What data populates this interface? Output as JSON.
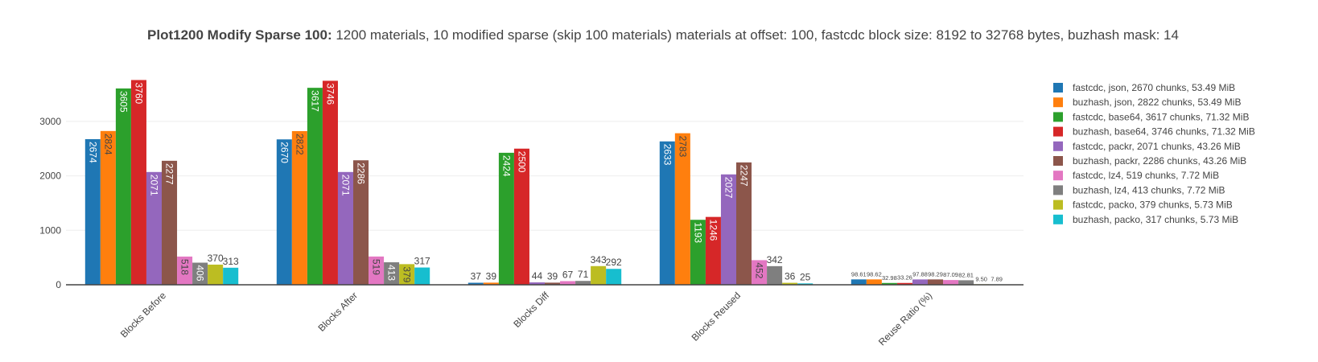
{
  "title": {
    "bold": "Plot1200 Modify Sparse 100:",
    "rest": " 1200 materials, 10 modified sparse (skip 100 materials) materials at offset: 100, fastcdc block size: 8192 to 32768 bytes, buzhash mask: 14"
  },
  "chart_data": {
    "type": "bar",
    "categories": [
      "Blocks Before",
      "Blocks After",
      "Blocks Diff",
      "Blocks Reused",
      "Reuse Ratio (%)"
    ],
    "y_ticks": [
      0,
      1000,
      2000,
      3000
    ],
    "ylim": [
      0,
      3900
    ],
    "grid": true,
    "legend_position": "right",
    "series": [
      {
        "name": "fastcdc, json, 2670 chunks, 53.49 MiB",
        "color": "#1f77b4",
        "values": [
          2674,
          2670,
          37,
          2633,
          98.61
        ],
        "labels": [
          "2674",
          "2670",
          "37",
          "2633",
          "98.61"
        ]
      },
      {
        "name": "buzhash, json, 2822 chunks, 53.49 MiB",
        "color": "#ff7f0e",
        "values": [
          2824,
          2822,
          39,
          2783,
          98.62
        ],
        "labels": [
          "2824",
          "2822",
          "39",
          "2783",
          "98.62"
        ]
      },
      {
        "name": "fastcdc, base64, 3617 chunks, 71.32 MiB",
        "color": "#2ca02c",
        "values": [
          3605,
          3617,
          2424,
          1193,
          32.98
        ],
        "labels": [
          "3605",
          "3617",
          "2424",
          "1193",
          "32.98"
        ]
      },
      {
        "name": "buzhash, base64, 3746 chunks, 71.32 MiB",
        "color": "#d62728",
        "values": [
          3760,
          3746,
          2500,
          1246,
          33.26
        ],
        "labels": [
          "3760",
          "3746",
          "2500",
          "1246",
          "33.26"
        ]
      },
      {
        "name": "fastcdc, packr, 2071 chunks, 43.26 MiB",
        "color": "#9467bd",
        "values": [
          2071,
          2071,
          44,
          2027,
          97.88
        ],
        "labels": [
          "2071",
          "2071",
          "44",
          "2027",
          "97.88"
        ]
      },
      {
        "name": "buzhash, packr, 2286 chunks, 43.26 MiB",
        "color": "#8c564b",
        "values": [
          2277,
          2286,
          39,
          2247,
          98.29
        ],
        "labels": [
          "2277",
          "2286",
          "39",
          "2247",
          "98.29"
        ]
      },
      {
        "name": "fastcdc, lz4, 519 chunks, 7.72 MiB",
        "color": "#e377c2",
        "values": [
          518,
          519,
          67,
          452,
          87.09
        ],
        "labels": [
          "518",
          "519",
          "67",
          "452",
          "87.09"
        ]
      },
      {
        "name": "buzhash, lz4, 413 chunks, 7.72 MiB",
        "color": "#7f7f7f",
        "values": [
          406,
          413,
          71,
          342,
          82.81
        ],
        "labels": [
          "406",
          "413",
          "71",
          "342",
          "82.81"
        ]
      },
      {
        "name": "fastcdc, packo, 379 chunks, 5.73 MiB",
        "color": "#bcbd22",
        "values": [
          370,
          379,
          343,
          36,
          9.5
        ],
        "labels": [
          "370",
          "379",
          "343",
          "36",
          "9.50"
        ]
      },
      {
        "name": "buzhash, packo, 317 chunks, 5.73 MiB",
        "color": "#17becf",
        "values": [
          313,
          317,
          292,
          25,
          7.89
        ],
        "labels": [
          "313",
          "317",
          "292",
          "25",
          "7.89"
        ]
      }
    ]
  }
}
